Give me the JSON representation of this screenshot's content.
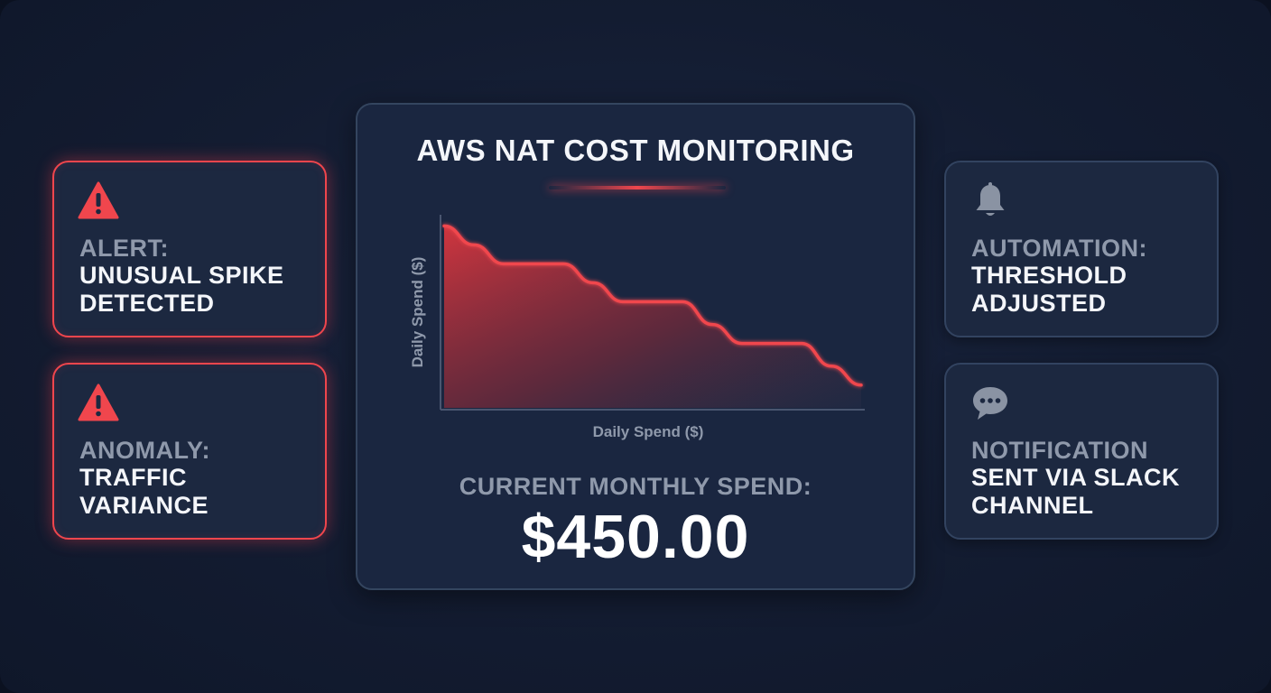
{
  "main_panel": {
    "title": "AWS NAT COST MONITORING",
    "spend_label": "CURRENT MONTHLY SPEND:",
    "spend_value": "$450.00"
  },
  "cards": [
    {
      "icon": "warning-triangle-icon",
      "label": "ALERT:",
      "text": "UNUSUAL SPIKE DETECTED",
      "style": "alert"
    },
    {
      "icon": "warning-triangle-icon",
      "label": "ANOMALY:",
      "text": "TRAFFIC VARIANCE",
      "style": "alert"
    },
    {
      "icon": "bell-icon",
      "label": "AUTOMATION:",
      "text": "THRESHOLD ADJUSTED",
      "style": "info"
    },
    {
      "icon": "chat-bubble-icon",
      "label": "NOTIFICATION",
      "text": "SENT VIA SLACK CHANNEL",
      "style": "info"
    }
  ],
  "colors": {
    "alert": "#f0464d",
    "background": "#131c31",
    "card": "#1c2840",
    "muted_text": "#8f99ab",
    "icon_gray": "#8a93a3"
  },
  "chart_data": {
    "type": "area",
    "xlabel": "Daily Spend ($)",
    "ylabel": "Daily Spend ($)",
    "x": [
      0,
      1,
      2,
      3,
      4,
      5,
      6,
      7,
      8,
      9,
      10,
      11,
      12,
      13,
      14
    ],
    "values": [
      96,
      86,
      76,
      76,
      76,
      66,
      56,
      56,
      56,
      44,
      34,
      34,
      34,
      22,
      12
    ],
    "ylim": [
      0,
      100
    ],
    "xlim": [
      0,
      14
    ],
    "grid": false,
    "color": "#f0464d"
  }
}
